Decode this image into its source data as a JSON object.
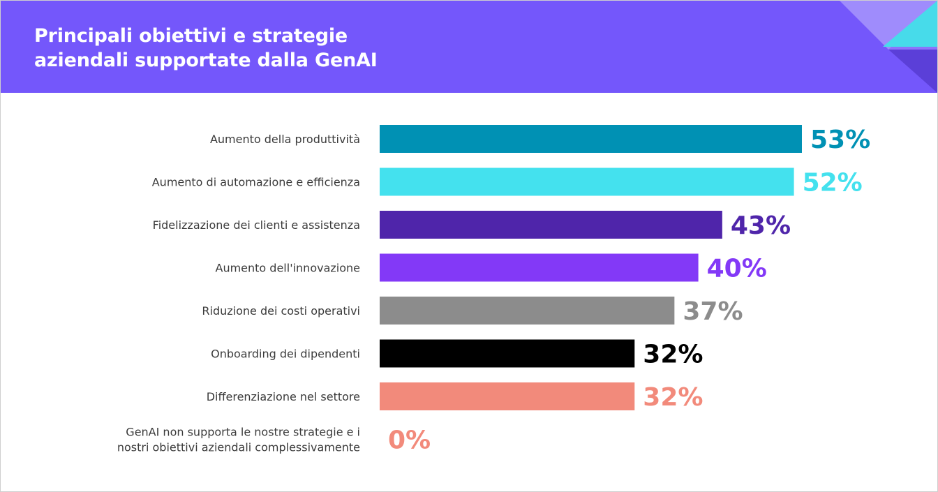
{
  "header": {
    "title_line1": "Principali obiettivi e strategie",
    "title_line2": "aziendali supportate dalla GenAI",
    "background_color": "#7457fb"
  },
  "chart_data": {
    "type": "bar",
    "orientation": "horizontal",
    "title": "Principali obiettivi e strategie aziendali supportate dalla GenAI",
    "categories": [
      [
        "Aumento della produttività"
      ],
      [
        "Aumento di automazione e efficienza"
      ],
      [
        "Fidelizzazione dei clienti e assistenza"
      ],
      [
        "Aumento dell'innovazione"
      ],
      [
        "Riduzione dei costi operativi"
      ],
      [
        "Onboarding dei dipendenti"
      ],
      [
        "Differenziazione nel settore"
      ],
      [
        "GenAI non supporta le nostre strategie e i",
        "nostri obiettivi aziendali complessivamente"
      ]
    ],
    "values": [
      53,
      52,
      43,
      40,
      37,
      32,
      32,
      0
    ],
    "value_labels": [
      "53%",
      "52%",
      "43%",
      "40%",
      "37%",
      "32%",
      "32%",
      "0%"
    ],
    "colors": [
      "#0091b4",
      "#44e1ee",
      "#4f25aa",
      "#8339f7",
      "#8c8c8c",
      "#000000",
      "#f28a7b",
      "#f28a7b"
    ],
    "unit": "%",
    "xlim": [
      0,
      53
    ],
    "grid": false,
    "legend": "none"
  }
}
